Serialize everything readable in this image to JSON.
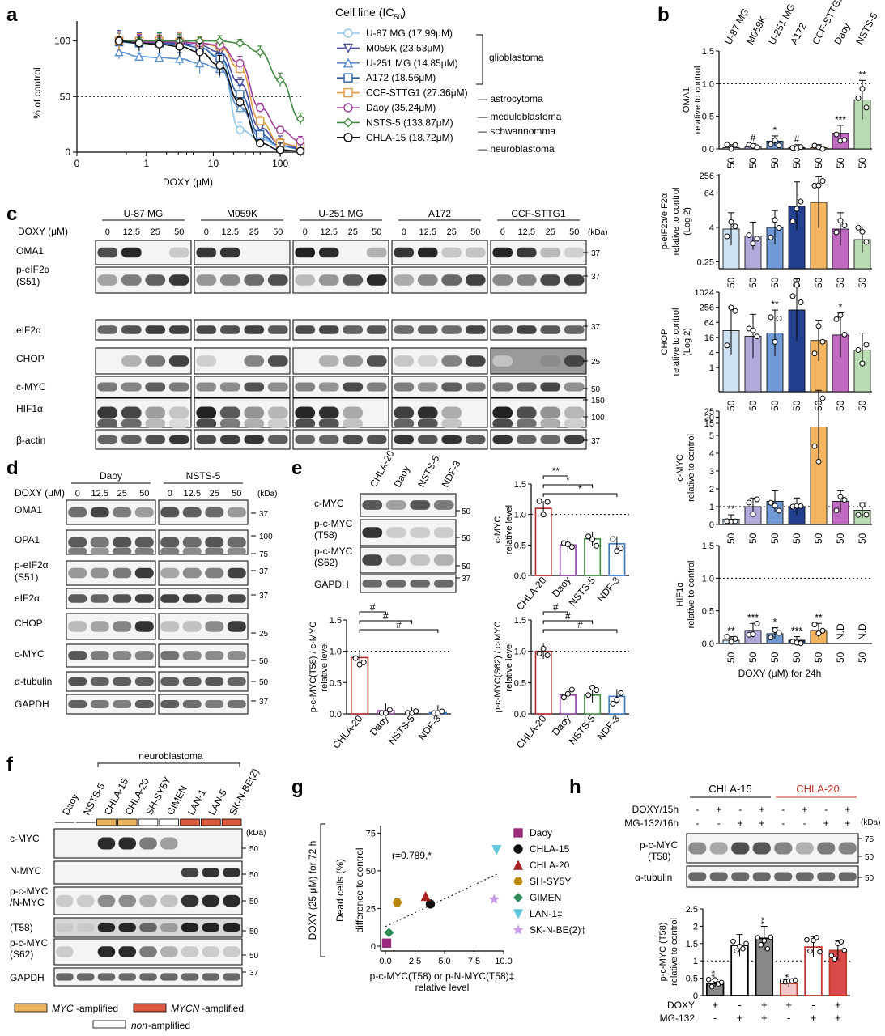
{
  "panels": {
    "a": {
      "letter": "a",
      "chart_data": {
        "type": "line",
        "xscale": "log",
        "xlabel": "DOXY (µM)",
        "ylabel": "% of control",
        "xticks": [
          "0",
          "1",
          "10",
          "100"
        ],
        "yticks": [
          0,
          50,
          100
        ],
        "ylim": [
          0,
          115
        ],
        "reference_line": 50,
        "legend_title": "Cell line (IC",
        "legend_title_sub": "50",
        "legend_title_end": ")",
        "x": [
          0.39,
          0.78,
          1.56,
          3.13,
          6.25,
          12.5,
          25,
          50,
          100,
          200
        ],
        "series": [
          {
            "name": "U-87 MG (17.99μM)",
            "color": "#8fc7ea",
            "marker": "circle",
            "values": [
              100,
              98,
              98,
              97,
              94,
              86,
              20,
              12,
              5,
              3
            ]
          },
          {
            "name": "M059K (23.53μM)",
            "color": "#4a4aa0",
            "marker": "tri-down",
            "values": [
              100,
              99,
              99,
              98,
              96,
              90,
              62,
              22,
              8,
              4
            ]
          },
          {
            "name": "U-251 MG (14.85μM)",
            "color": "#5a8fd0",
            "marker": "tri-up",
            "values": [
              90,
              86,
              85,
              84,
              80,
              75,
              40,
              14,
              6,
              3
            ]
          },
          {
            "name": "A172 (18.56μM)",
            "color": "#2a5fa8",
            "marker": "square",
            "values": [
              99,
              98,
              98,
              97,
              94,
              85,
              52,
              16,
              6,
              3
            ]
          },
          {
            "name": "CCF-STTG1 (27.36μM)",
            "color": "#e39a44",
            "marker": "square",
            "values": [
              100,
              100,
              100,
              99,
              98,
              95,
              75,
              28,
              8,
              5
            ]
          },
          {
            "name": "Daoy (35.24μM)",
            "color": "#a13e9c",
            "marker": "circle",
            "values": [
              100,
              99,
              99,
              99,
              98,
              96,
              80,
              40,
              20,
              10
            ]
          },
          {
            "name": "NSTS-5 (133.87μM)",
            "color": "#3f8a40",
            "marker": "diamond",
            "values": [
              100,
              100,
              100,
              100,
              100,
              100,
              98,
              90,
              65,
              30
            ]
          },
          {
            "name": "CHLA-15 (18.72μM)",
            "color": "#111111",
            "marker": "circle",
            "values": [
              100,
              98,
              97,
              95,
              90,
              78,
              45,
              8,
              2,
              1
            ]
          }
        ],
        "groups": [
          "glioblastoma",
          "— astrocytoma",
          "— meduloblastoma",
          "— schwannomma",
          "— neuroblastoma"
        ]
      }
    },
    "b": {
      "letter": "b",
      "header_labels": [
        "U-87 MG",
        "M059K",
        "U-251 MG",
        "A172",
        "CCF-STTG1",
        "Daoy",
        "NSTS-5"
      ],
      "colors": [
        "#cfe3f4",
        "#b3a8dc",
        "#6f9ad6",
        "#23408e",
        "#f4b562",
        "#c06ac2",
        "#b9dbb1"
      ],
      "x_value": "50",
      "xlabel": "DOXY (μM) for 24h",
      "chart_data": [
        {
          "type": "bar",
          "ylabel": [
            "OMA1",
            "relative to control"
          ],
          "yticks": [
            "0.0",
            "0.5",
            "1.0",
            "1.5"
          ],
          "values": [
            0.02,
            0.03,
            0.12,
            0.02,
            0.02,
            0.24,
            0.75
          ],
          "sig": [
            "",
            "#",
            "*",
            "#",
            "",
            "***",
            "**"
          ]
        },
        {
          "type": "bar",
          "ylabel": [
            "p-eIF2α/eIF2α",
            "relative to control",
            "(Log 2)"
          ],
          "yticks": [
            "0.25",
            "4",
            "64",
            "256"
          ],
          "values": [
            3.5,
            2.0,
            4.0,
            22,
            30,
            3.5,
            1.5
          ],
          "sig": [
            "",
            "",
            "",
            "",
            "",
            "",
            ""
          ]
        },
        {
          "type": "bar",
          "ylabel": [
            "CHOP",
            "relative to control",
            "(Log 2)"
          ],
          "yticks": [
            "1",
            "4",
            "16",
            "64",
            "256",
            "1024"
          ],
          "values": [
            30,
            18,
            24,
            200,
            12,
            20,
            5
          ],
          "sig": [
            "",
            "",
            "**",
            "",
            "",
            "*",
            ""
          ]
        },
        {
          "type": "bar",
          "ylabel": [
            "c-MYC",
            "relative to control"
          ],
          "yticks": [
            "0",
            "1",
            "2",
            "3",
            "4",
            "5",
            "15",
            "20",
            "25"
          ],
          "values": [
            0.3,
            1.0,
            1.3,
            1.0,
            12,
            1.3,
            0.8
          ],
          "sig": [
            "**",
            "",
            "",
            "",
            "",
            "",
            ""
          ]
        },
        {
          "type": "bar",
          "ylabel": [
            "HIF1α",
            "relative to control"
          ],
          "yticks": [
            "0.0",
            "0.5",
            "1.0",
            "1.5"
          ],
          "values": [
            0.05,
            0.2,
            0.15,
            0.05,
            0.2,
            null,
            null
          ],
          "sig": [
            "**",
            "***",
            "*",
            "***",
            "**",
            "N.D.",
            "N.D."
          ]
        }
      ]
    },
    "c": {
      "letter": "c",
      "treatment_label": "DOXY (μM)",
      "kda_label": "(kDa)",
      "doses": [
        "0",
        "12.5",
        "25",
        "50"
      ],
      "cell_lines": [
        "U-87 MG",
        "M059K",
        "U-251 MG",
        "A172",
        "CCF-STTG1"
      ],
      "rows": [
        "OMA1",
        "p-eIF2α",
        "(S51)",
        "eIF2α",
        "CHOP",
        "c-MYC",
        "HIF1α",
        "β-actin"
      ],
      "markers": [
        "37",
        "37",
        "37",
        "25",
        "50",
        "150",
        "100",
        "37"
      ]
    },
    "d": {
      "letter": "d",
      "treatment_label": "DOXY (μM)",
      "kda_label": "(kDa)",
      "doses": [
        "0",
        "12.5",
        "25",
        "50"
      ],
      "cell_lines": [
        "Daoy",
        "NSTS-5"
      ],
      "rows": [
        "OMA1",
        "OPA1",
        "p-eIF2α",
        "(S51)",
        "eIF2α",
        "CHOP",
        "c-MYC",
        "α-tubulin",
        "GAPDH"
      ],
      "markers": [
        "37",
        "100",
        "75",
        "37",
        "37",
        "25",
        "50",
        "50",
        "37"
      ]
    },
    "e": {
      "letter": "e",
      "lanes": [
        "CHLA-20",
        "Daoy",
        "NSTS-5",
        "NDF-3"
      ],
      "rows": [
        "c-MYC",
        "p-c-MYC",
        "(T58)",
        "p-c-MYC",
        "(S62)",
        "GAPDH"
      ],
      "markers": [
        "50",
        "50",
        "50",
        "37"
      ],
      "colors": [
        "#b02a2a",
        "#8a3f9c",
        "#3f8a40",
        "#3a78c2"
      ],
      "chart_data": [
        {
          "type": "bar",
          "categories": [
            "CHLA-20",
            "Daoy",
            "NSTS-5",
            "NDF-3"
          ],
          "values": [
            1.1,
            0.5,
            0.6,
            0.52
          ],
          "ylabel": [
            "c-MYC",
            "relative level"
          ],
          "yticks": [
            "0.0",
            "0.5",
            "1.0",
            "1.5"
          ],
          "sig": [
            "**",
            "*",
            "*"
          ]
        },
        {
          "type": "bar",
          "categories": [
            "CHLA-20",
            "Daoy",
            "NSTS-5",
            "NDF-3"
          ],
          "values": [
            0.9,
            0.05,
            0.0,
            0.02
          ],
          "ylabel": [
            "p-c-MYC(T58) / c-MYC",
            "relative level"
          ],
          "yticks": [
            "0.0",
            "0.5",
            "1.0",
            "1.5"
          ],
          "sig": [
            "#",
            "#",
            "#"
          ]
        },
        {
          "type": "bar",
          "categories": [
            "CHLA-20",
            "Daoy",
            "NSTS-5",
            "NDF-3"
          ],
          "values": [
            1.0,
            0.3,
            0.3,
            0.28
          ],
          "ylabel": [
            "p-c-MYC(S62) / c-MYC",
            "relative level"
          ],
          "yticks": [
            "0.0",
            "0.5",
            "1.0",
            "1.5"
          ],
          "sig": [
            "#",
            "#",
            "#"
          ]
        }
      ]
    },
    "f": {
      "letter": "f",
      "group_label": "neuroblastoma",
      "lanes": [
        "Daoy",
        "NSTS-5",
        "CHLA-15",
        "CHLA-20",
        "SH-SY5Y",
        "GIMEN",
        "LAN-1",
        "LAN-5",
        "SK-N-BE(2)"
      ],
      "kda_label": "(kDa)",
      "rows": [
        "c-MYC",
        "N-MYC",
        "p-c-MYC",
        "/N-MYC",
        "(T58)",
        "p-c-MYC",
        "(S62)",
        "GAPDH"
      ],
      "markers": [
        "50",
        "50",
        "50",
        "50",
        "50",
        "37"
      ],
      "legend": {
        "myc": "MYC",
        "myc_rest": "-amplified",
        "mycn": "MYCN",
        "mycn_rest": "-amplified",
        "non": "non",
        "non_rest": "-amplified",
        "myc_color": "#e8b35a",
        "mycn_color": "#d9583e"
      }
    },
    "g": {
      "letter": "g",
      "chart_data": {
        "type": "scatter",
        "ylabel": [
          "DOXY (25 μM) for 72 h",
          "Dead cells (%)",
          "difference to control"
        ],
        "xlabel": [
          "p-c-MYC(T58) or p-N-MYC(T58)‡",
          "relative level"
        ],
        "xticks": [
          "0.0",
          "2.5",
          "5.0",
          "7.5",
          "10.0"
        ],
        "yticks": [
          "0",
          "25",
          "50",
          "75"
        ],
        "xlim": [
          0,
          10
        ],
        "ylim": [
          0,
          75
        ],
        "annotation": "r=0.789,*",
        "points": [
          {
            "name": "Daoy",
            "x": 0.1,
            "y": 2,
            "color": "#9c2b7e",
            "marker": "square"
          },
          {
            "name": "CHLA-15",
            "x": 3.8,
            "y": 28,
            "color": "#111111",
            "marker": "circle"
          },
          {
            "name": "CHLA-20",
            "x": 3.4,
            "y": 33,
            "color": "#a82020",
            "marker": "tri-up"
          },
          {
            "name": "SH-SY5Y",
            "x": 1.0,
            "y": 29,
            "color": "#b8860b",
            "marker": "hexagon"
          },
          {
            "name": "GIMEN",
            "x": 0.3,
            "y": 9,
            "color": "#2e8b57",
            "marker": "diamond"
          },
          {
            "name": "LAN-1‡",
            "x": 9.4,
            "y": 64,
            "color": "#5ec8e0",
            "marker": "tri-down"
          },
          {
            "name": "SK-N-BE(2)‡",
            "x": 9.2,
            "y": 31,
            "color": "#c79be6",
            "marker": "star"
          }
        ],
        "trend": {
          "x": [
            0,
            9.5
          ],
          "y": [
            13,
            48
          ]
        }
      }
    },
    "h": {
      "letter": "h",
      "group1": "CHLA-15",
      "group2": "CHLA-20",
      "group2_color": "#c0392b",
      "treat_labels": [
        "DOXY/15h",
        "MG-132/16h"
      ],
      "treat_rows": [
        [
          "-",
          "+",
          "-",
          "+",
          "-",
          "+",
          "-",
          "+"
        ],
        [
          "-",
          "-",
          "+",
          "+",
          "-",
          "-",
          "+",
          "+"
        ]
      ],
      "kda_label": "(kDa)",
      "rows": [
        "p-c-MYC",
        "(T58)",
        "α-tubulin"
      ],
      "markers": [
        "75",
        "50",
        "50"
      ],
      "chart_data": {
        "type": "bar",
        "ylabel": [
          "p-c-MYC (T58)",
          "relative to control"
        ],
        "yticks": [
          "0",
          "0.5",
          "1",
          "1.5",
          "2",
          "2.5"
        ],
        "values": [
          0.35,
          1.45,
          1.65,
          0.35,
          1.4,
          1.3
        ],
        "sig": [
          "**",
          "",
          "**",
          "*",
          "",
          ""
        ],
        "colors": [
          "#888888",
          "#ffffff",
          "#888888",
          "#f2c6c6",
          "#ffffff",
          "#d94a4a"
        ],
        "edges": [
          "#000000",
          "#000000",
          "#000000",
          "#c0392b",
          "#c0392b",
          "#c0392b"
        ],
        "doxy_label": "DOXY",
        "mg_label": "MG-132",
        "doxy": [
          "+",
          "-",
          "+",
          "+",
          "-",
          "+"
        ],
        "mg": [
          "-",
          "+",
          "+",
          "-",
          "+",
          "+"
        ]
      }
    }
  }
}
